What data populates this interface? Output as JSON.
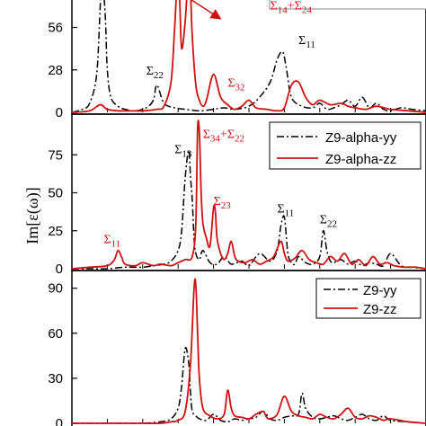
{
  "chart_data": [
    {
      "type": "line",
      "panel": "top",
      "ylim": [
        0,
        80
      ],
      "xlim": [
        0,
        10
      ],
      "yticks": [
        0,
        28,
        56
      ],
      "series": [
        {
          "style": "dash-dot",
          "color": "#000000",
          "x": [
            0.0,
            0.3,
            0.5,
            0.7,
            0.8,
            0.85,
            0.9,
            0.95,
            1.0,
            1.1,
            1.3,
            1.5,
            1.8,
            2.1,
            2.3,
            2.4,
            2.6,
            2.9,
            3.2,
            3.6,
            4.0,
            4.3,
            4.6,
            5.0,
            5.3,
            5.6,
            5.8,
            5.95,
            6.05,
            6.2,
            6.5,
            6.8,
            7.0,
            7.2,
            7.4,
            7.6,
            7.8,
            8.0,
            8.2,
            8.4,
            8.6,
            8.8,
            9.0,
            9.3,
            9.6,
            10.0
          ],
          "y": [
            0,
            2,
            6,
            25,
            70,
            85,
            78,
            60,
            28,
            10,
            4,
            2,
            1,
            3,
            8,
            18,
            6,
            3,
            2,
            1,
            2,
            3,
            2,
            4,
            10,
            20,
            35,
            40,
            30,
            10,
            4,
            3,
            6,
            2,
            3,
            5,
            8,
            4,
            10,
            3,
            6,
            2,
            1,
            3,
            2,
            1
          ]
        },
        {
          "style": "solid",
          "color": "#d01010",
          "x": [
            0.0,
            0.5,
            0.8,
            1.0,
            1.3,
            1.6,
            2.0,
            2.4,
            2.6,
            2.8,
            2.9,
            3.0,
            3.05,
            3.1,
            3.2,
            3.3,
            3.35,
            3.4,
            3.5,
            3.6,
            3.7,
            3.8,
            4.0,
            4.2,
            4.4,
            4.5,
            4.6,
            4.8,
            5.0,
            5.2,
            5.5,
            5.8,
            6.0,
            6.2,
            6.4,
            6.6,
            6.8,
            7.0,
            7.3,
            7.6,
            7.8,
            8.0,
            8.3,
            8.6,
            9.0,
            9.5,
            10.0
          ],
          "y": [
            0,
            1,
            5,
            2,
            1,
            1,
            1,
            2,
            4,
            20,
            55,
            95,
            70,
            42,
            60,
            95,
            80,
            50,
            18,
            8,
            4,
            8,
            25,
            10,
            5,
            3,
            2,
            4,
            8,
            3,
            2,
            1,
            3,
            18,
            20,
            10,
            5,
            8,
            5,
            6,
            4,
            3,
            2,
            4,
            2,
            1,
            0
          ]
        }
      ],
      "annotations": [
        {
          "text": "Σ",
          "sub": "22",
          "x": 2.1,
          "y": 25,
          "color": "#000000"
        },
        {
          "text": "Σ",
          "sub": "32",
          "x": 4.4,
          "y": 17,
          "color": "#d01010"
        },
        {
          "text": "Σ",
          "sub": "11",
          "x": 6.4,
          "y": 45,
          "color": "#000000"
        },
        {
          "text": "Σ",
          "sub": "14",
          "text2": "+Σ",
          "sub2": "24",
          "x": 5.6,
          "y": 68,
          "color": "#d01010"
        }
      ]
    },
    {
      "type": "line",
      "panel": "middle",
      "ylim": [
        0,
        100
      ],
      "xlim": [
        0,
        10
      ],
      "yticks": [
        0,
        25,
        50,
        75
      ],
      "series": [
        {
          "name": "Z9-alpha-yy",
          "style": "dash-dot",
          "color": "#000000",
          "x": [
            0.0,
            0.5,
            1.0,
            1.5,
            2.0,
            2.3,
            2.6,
            2.8,
            3.0,
            3.1,
            3.2,
            3.3,
            3.35,
            3.4,
            3.45,
            3.5,
            3.6,
            3.7,
            3.9,
            4.1,
            4.3,
            4.5,
            4.8,
            5.0,
            5.3,
            5.6,
            5.8,
            5.9,
            6.0,
            6.1,
            6.2,
            6.3,
            6.4,
            6.6,
            6.8,
            7.0,
            7.1,
            7.2,
            7.3,
            7.4,
            7.6,
            7.8,
            8.0,
            8.2,
            8.4,
            8.6,
            8.8,
            9.0,
            9.3,
            9.6,
            10.0
          ],
          "y": [
            0,
            0,
            0,
            1,
            1,
            2,
            3,
            5,
            12,
            25,
            60,
            78,
            60,
            45,
            20,
            10,
            6,
            12,
            4,
            3,
            8,
            3,
            5,
            2,
            10,
            5,
            12,
            28,
            34,
            10,
            4,
            3,
            8,
            4,
            3,
            8,
            25,
            12,
            5,
            4,
            6,
            3,
            5,
            2,
            4,
            3,
            2,
            10,
            2,
            1,
            0
          ]
        },
        {
          "name": "Z9-alpha-zz",
          "style": "solid",
          "color": "#d01010",
          "x": [
            0.0,
            0.5,
            1.0,
            1.2,
            1.3,
            1.4,
            1.5,
            1.8,
            2.0,
            2.3,
            2.5,
            2.8,
            3.0,
            3.2,
            3.4,
            3.5,
            3.55,
            3.6,
            3.65,
            3.7,
            3.8,
            3.9,
            4.0,
            4.05,
            4.1,
            4.2,
            4.3,
            4.4,
            4.5,
            4.6,
            4.7,
            4.9,
            5.1,
            5.3,
            5.5,
            5.7,
            5.9,
            6.0,
            6.1,
            6.3,
            6.5,
            6.7,
            6.9,
            7.1,
            7.3,
            7.5,
            7.7,
            7.9,
            8.1,
            8.3,
            8.5,
            8.7,
            8.9,
            9.1,
            9.4,
            9.7,
            10.0
          ],
          "y": [
            0,
            1,
            2,
            6,
            12,
            8,
            3,
            2,
            4,
            2,
            3,
            2,
            4,
            6,
            8,
            30,
            92,
            90,
            50,
            30,
            20,
            15,
            40,
            38,
            20,
            10,
            6,
            10,
            18,
            8,
            5,
            4,
            6,
            3,
            5,
            8,
            18,
            10,
            5,
            7,
            12,
            6,
            4,
            3,
            8,
            5,
            10,
            3,
            6,
            2,
            8,
            3,
            4,
            2,
            1,
            1,
            0
          ]
        }
      ],
      "annotations": [
        {
          "text": "Σ",
          "sub": "13",
          "x": 2.9,
          "y": 76,
          "color": "#000000"
        },
        {
          "text": "Σ",
          "sub": "34",
          "text2": "+Σ",
          "sub2": "22",
          "x": 3.7,
          "y": 86,
          "color": "#d01010"
        },
        {
          "text": "Σ",
          "sub": "23",
          "x": 4.0,
          "y": 42,
          "color": "#d01010"
        },
        {
          "text": "Σ",
          "sub": "11",
          "x": 0.9,
          "y": 17,
          "color": "#d01010"
        },
        {
          "text": "Σ",
          "sub": "11",
          "x": 5.8,
          "y": 37,
          "color": "#000000"
        },
        {
          "text": "Σ",
          "sub": "22",
          "x": 7.0,
          "y": 30,
          "color": "#000000"
        }
      ]
    },
    {
      "type": "line",
      "panel": "bottom",
      "ylim": [
        0,
        100
      ],
      "xlim": [
        0,
        10
      ],
      "yticks": [
        0,
        30,
        60,
        90
      ],
      "series": [
        {
          "name": "Z9-yy",
          "style": "dash-dot",
          "color": "#000000",
          "x": [
            0.0,
            0.5,
            1.0,
            1.5,
            2.0,
            2.5,
            2.8,
            3.0,
            3.1,
            3.2,
            3.3,
            3.35,
            3.4,
            3.5,
            3.6,
            3.8,
            4.0,
            4.2,
            4.4,
            4.6,
            4.8,
            5.0,
            5.2,
            5.4,
            5.6,
            5.8,
            6.0,
            6.2,
            6.4,
            6.5,
            6.6,
            6.8,
            7.0,
            7.2,
            7.4,
            7.6,
            7.8,
            8.0,
            8.2,
            8.4,
            8.6,
            8.8,
            9.0,
            9.5,
            10.0
          ],
          "y": [
            0,
            0,
            0,
            0,
            0,
            1,
            3,
            10,
            25,
            50,
            40,
            20,
            8,
            5,
            3,
            2,
            6,
            2,
            1,
            3,
            2,
            3,
            4,
            8,
            3,
            2,
            4,
            5,
            6,
            20,
            10,
            4,
            3,
            4,
            5,
            3,
            2,
            4,
            6,
            3,
            2,
            5,
            2,
            1,
            0
          ]
        },
        {
          "name": "Z9-zz",
          "style": "solid",
          "color": "#d01010",
          "x": [
            0.0,
            0.5,
            1.0,
            1.5,
            2.0,
            2.5,
            2.8,
            3.0,
            3.2,
            3.35,
            3.45,
            3.5,
            3.55,
            3.6,
            3.7,
            3.9,
            4.1,
            4.3,
            4.4,
            4.5,
            4.6,
            4.8,
            5.0,
            5.2,
            5.4,
            5.5,
            5.6,
            5.8,
            6.0,
            6.2,
            6.4,
            6.6,
            6.8,
            7.0,
            7.2,
            7.4,
            7.6,
            7.8,
            8.0,
            8.2,
            8.4,
            8.6,
            8.8,
            9.0,
            9.5,
            10.0
          ],
          "y": [
            0,
            0,
            0,
            0,
            0,
            0,
            1,
            2,
            8,
            40,
            90,
            92,
            60,
            30,
            10,
            5,
            3,
            6,
            22,
            10,
            5,
            4,
            3,
            6,
            8,
            4,
            3,
            6,
            18,
            8,
            5,
            4,
            3,
            6,
            4,
            3,
            6,
            10,
            4,
            3,
            5,
            4,
            2,
            3,
            1,
            0
          ]
        }
      ],
      "annotations": []
    }
  ],
  "legend_middle": [
    {
      "label": "Z9-alpha-yy",
      "style": "dash-dot",
      "color": "#000000"
    },
    {
      "label": "Z9-alpha-zz",
      "style": "solid",
      "color": "#d01010"
    }
  ],
  "legend_bottom": [
    {
      "label": "Z9-yy",
      "style": "dash-dot",
      "color": "#000000"
    },
    {
      "label": "Z9-zz",
      "style": "solid",
      "color": "#d01010"
    }
  ],
  "ylabel": "Im[ε(ω)]"
}
